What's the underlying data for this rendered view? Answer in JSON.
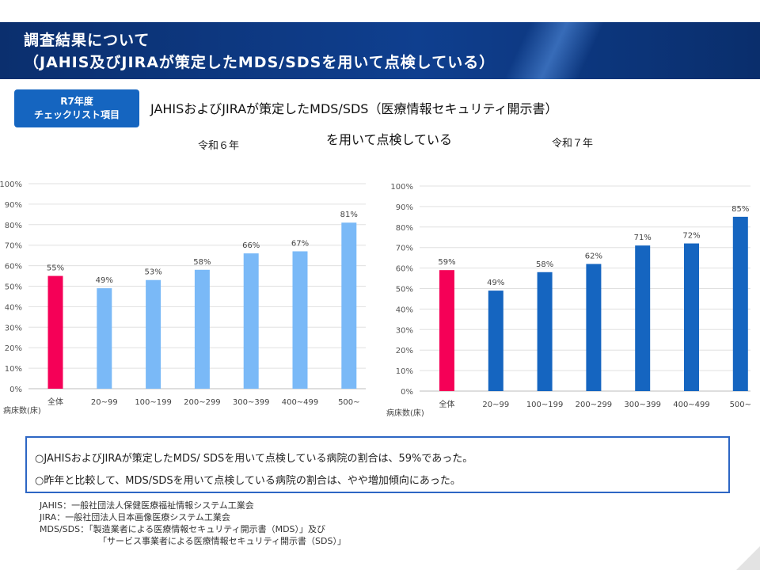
{
  "header": {
    "title_line1": "調査結果について",
    "title_line2": "（JAHIS及びJIRAが策定したMDS/SDSを用いて点検している）"
  },
  "badge": {
    "line1": "R7年度",
    "line2": "チェックリスト項目"
  },
  "heading": {
    "line1": "JAHISおよびJIRAが策定したMDS/SDS（医療情報セキュリティ開示書）",
    "line2": "を用いて点検している"
  },
  "colors": {
    "header_bg": "#0b2f6e",
    "badge_bg": "#1565c0",
    "total_bar": "#f50057",
    "r6_bar": "#7ab9f7",
    "r7_bar": "#1565c0",
    "summary_border": "#2d66c4"
  },
  "chart_data": [
    {
      "type": "bar",
      "title": "令和６年",
      "xlabel": "病床数(床)",
      "ylabel": "",
      "ylim": [
        0,
        100
      ],
      "yticks": [
        "0%",
        "10%",
        "20%",
        "30%",
        "40%",
        "50%",
        "60%",
        "70%",
        "80%",
        "90%",
        "100%"
      ],
      "grid": true,
      "categories": [
        "全体",
        "20~99",
        "100~199",
        "200~299",
        "300~399",
        "400~499",
        "500~"
      ],
      "values": [
        55,
        49,
        53,
        58,
        66,
        67,
        81
      ],
      "data_labels": [
        "55%",
        "49%",
        "53%",
        "58%",
        "66%",
        "67%",
        "81%"
      ],
      "bar_colors": [
        "#f50057",
        "#7ab9f7",
        "#7ab9f7",
        "#7ab9f7",
        "#7ab9f7",
        "#7ab9f7",
        "#7ab9f7"
      ]
    },
    {
      "type": "bar",
      "title": "令和７年",
      "xlabel": "病床数(床)",
      "ylabel": "",
      "ylim": [
        0,
        100
      ],
      "yticks": [
        "0%",
        "10%",
        "20%",
        "30%",
        "40%",
        "50%",
        "60%",
        "70%",
        "80%",
        "90%",
        "100%"
      ],
      "grid": true,
      "categories": [
        "全体",
        "20~99",
        "100~199",
        "200~299",
        "300~399",
        "400~499",
        "500~"
      ],
      "values": [
        59,
        49,
        58,
        62,
        71,
        72,
        85
      ],
      "data_labels": [
        "59%",
        "49%",
        "58%",
        "62%",
        "71%",
        "72%",
        "85%"
      ],
      "bar_colors": [
        "#f50057",
        "#1565c0",
        "#1565c0",
        "#1565c0",
        "#1565c0",
        "#1565c0",
        "#1565c0"
      ]
    }
  ],
  "summary": {
    "line1": "○JAHISおよびJIRAが策定したMDS/ SDSを用いて点検している病院の割合は、59%であった。",
    "line2": "○昨年と比較して、MDS/SDSを用いて点検している病院の割合は、やや増加傾向にあった。"
  },
  "notes": [
    "JAHIS：一般社団法人保健医療福祉情報システム工業会",
    "JIRA：一般社団法人日本画像医療システム工業会",
    "MDS/SDS：「製造業者による医療情報セキュリティ開示書（MDS）」及び",
    "「サービス事業者による医療情報セキュリティ開示書（SDS）」"
  ]
}
